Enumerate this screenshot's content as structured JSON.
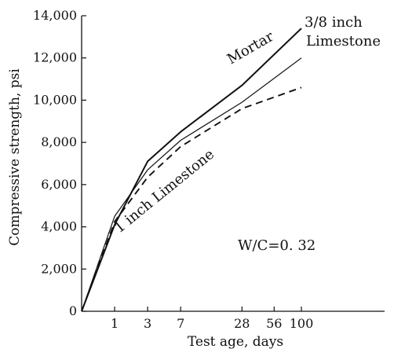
{
  "chart_data": {
    "type": "line",
    "xlabel": "Test age, days",
    "ylabel": "Compressive strength, psi",
    "x_ticks": [
      "1",
      "3",
      "7",
      "28",
      "56",
      "100"
    ],
    "y_ticks": [
      "0",
      "2,000",
      "4,000",
      "6,000",
      "8,000",
      "10,000",
      "12,000",
      "14,000"
    ],
    "ylim": [
      0,
      14000
    ],
    "x_scale": "log (age + 1)",
    "grid": false,
    "x": [
      0,
      1,
      3,
      7,
      28,
      100
    ],
    "series": [
      {
        "name": "Mortar",
        "style": "solid-thick",
        "color": "#111111",
        "values": [
          0,
          4100,
          7100,
          8500,
          10700,
          13400
        ]
      },
      {
        "name": "3/8 inch Limestone",
        "style": "solid-thin",
        "color": "#111111",
        "values": [
          0,
          4500,
          6700,
          8100,
          9900,
          12000
        ]
      },
      {
        "name": "1 inch Limestone",
        "style": "dashed",
        "color": "#111111",
        "values": [
          0,
          4250,
          6350,
          7800,
          9600,
          10600
        ]
      }
    ],
    "annotations": {
      "mortar": "Mortar",
      "limestone_3_8_line1": "3/8  inch",
      "limestone_3_8_line2": "Limestone",
      "limestone_1": "1 inch Limestone",
      "wc_ratio": "W/C=0. 32"
    }
  }
}
